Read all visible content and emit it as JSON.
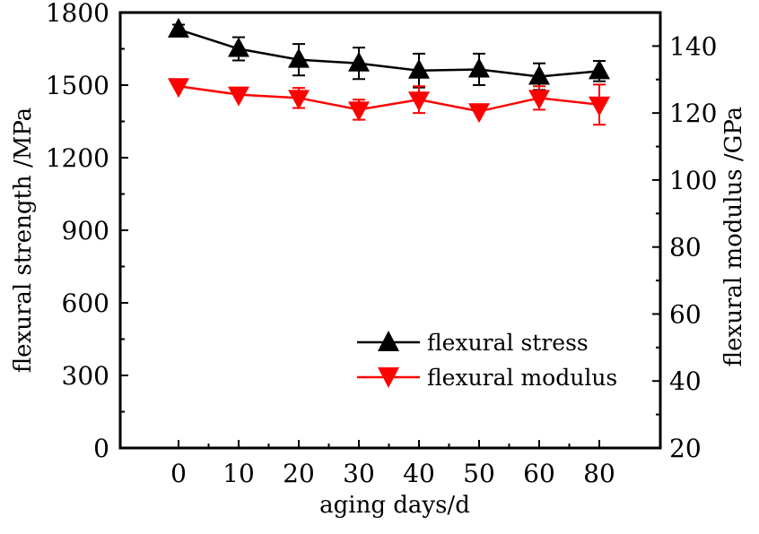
{
  "chart_data": {
    "type": "line",
    "xlabel": "aging days/d",
    "ylabel_left": "flexural strength /MPa",
    "ylabel_right": "flexural modulus /GPa",
    "x_ticks": [
      "0",
      "10",
      "20",
      "30",
      "40",
      "50",
      "60",
      "80"
    ],
    "y_left_range": [
      0,
      1800
    ],
    "y_left_ticks": [
      "0",
      "300",
      "600",
      "900",
      "1200",
      "1500",
      "1800"
    ],
    "y_right_range": [
      20,
      150
    ],
    "y_right_ticks": [
      "20",
      "40",
      "60",
      "80",
      "100",
      "120",
      "140"
    ],
    "legend_position": "bottom-right",
    "grid": false,
    "series": [
      {
        "name": "flexural stress",
        "axis": "left",
        "marker": "triangle-up",
        "color": "#000000",
        "x": [
          "0",
          "10",
          "20",
          "30",
          "40",
          "50",
          "60",
          "80"
        ],
        "values": [
          1730,
          1650,
          1605,
          1590,
          1560,
          1565,
          1535,
          1558
        ],
        "error": [
          20,
          48,
          65,
          65,
          70,
          65,
          55,
          42
        ]
      },
      {
        "name": "flexural modulus",
        "axis": "right",
        "marker": "triangle-down",
        "color": "#ff0000",
        "x": [
          "0",
          "10",
          "20",
          "30",
          "40",
          "50",
          "60",
          "80"
        ],
        "values": [
          128,
          125.5,
          124.5,
          121,
          124,
          120.5,
          124.5,
          122.5
        ],
        "error": [
          0,
          0,
          3,
          3,
          4,
          0,
          3.5,
          6
        ]
      }
    ]
  }
}
